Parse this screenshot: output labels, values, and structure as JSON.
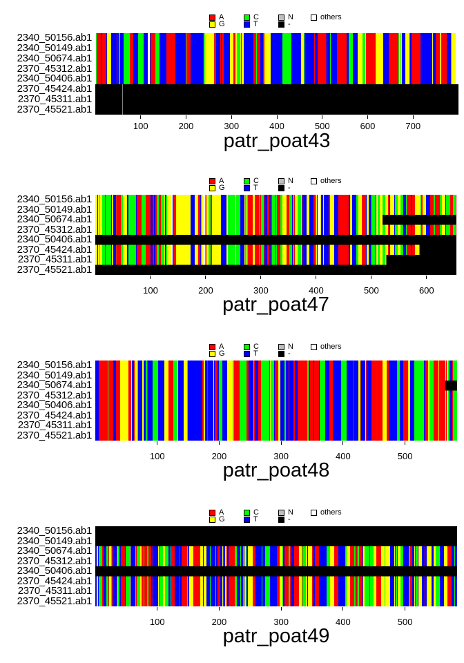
{
  "palette": {
    "A": "#ff0000",
    "C": "#00ff00",
    "N": "#bebebe",
    "others": "#ffffff",
    "G": "#ffff00",
    "T": "#0000ff",
    "-": "#000000"
  },
  "legend_rows": [
    [
      "A",
      "C",
      "N",
      "others"
    ],
    [
      "G",
      "T",
      "-"
    ]
  ],
  "row_labels": [
    "2340_50156.ab1",
    "2340_50149.ab1",
    "2340_50674.ab1",
    "2370_45312.ab1",
    "2340_50406.ab1",
    "2370_45424.ab1",
    "2370_45311.ab1",
    "2370_45521.ab1"
  ],
  "chart_data": [
    {
      "type": "heatmap",
      "subtype": "sequence-alignment",
      "title": "patr_poat43",
      "xlabel": "",
      "ylabel": "",
      "xlim": [
        0,
        800
      ],
      "xticks": [
        100,
        200,
        300,
        400,
        500,
        600,
        700
      ],
      "legend_entries": {
        "A": "#ff0000",
        "C": "#00ff00",
        "N": "#bebebe",
        "others": "#ffffff",
        "G": "#ffff00",
        "T": "#0000ff",
        "-": "#000000"
      },
      "color_mix": {
        "A": 0.3,
        "G": 0.13,
        "C": 0.14,
        "T": 0.31,
        "N": 0.004,
        "others": 0.006
      },
      "rows": [
        {
          "label": "2340_50156.ab1",
          "segments": [
            {
              "start": 0,
              "end": 800,
              "state": "sequence"
            }
          ]
        },
        {
          "label": "2340_50149.ab1",
          "segments": [
            {
              "start": 0,
              "end": 800,
              "state": "sequence"
            }
          ]
        },
        {
          "label": "2340_50674.ab1",
          "segments": [
            {
              "start": 0,
              "end": 800,
              "state": "sequence"
            }
          ]
        },
        {
          "label": "2370_45312.ab1",
          "segments": [
            {
              "start": 0,
              "end": 800,
              "state": "sequence"
            }
          ]
        },
        {
          "label": "2340_50406.ab1",
          "segments": [
            {
              "start": 0,
              "end": 800,
              "state": "sequence"
            }
          ]
        },
        {
          "label": "2370_45424.ab1",
          "segments": [
            {
              "start": 0,
              "end": 59,
              "state": "gap"
            },
            {
              "start": 59,
              "end": 60,
              "state": "blank"
            },
            {
              "start": 60,
              "end": 800,
              "state": "gap"
            }
          ]
        },
        {
          "label": "2370_45311.ab1",
          "segments": [
            {
              "start": 0,
              "end": 59,
              "state": "gap"
            },
            {
              "start": 59,
              "end": 60,
              "state": "blank"
            },
            {
              "start": 60,
              "end": 800,
              "state": "gap"
            }
          ]
        },
        {
          "label": "2370_45521.ab1",
          "segments": [
            {
              "start": 0,
              "end": 59,
              "state": "gap"
            },
            {
              "start": 59,
              "end": 60,
              "state": "blank"
            },
            {
              "start": 60,
              "end": 800,
              "state": "gap"
            }
          ]
        }
      ]
    },
    {
      "type": "heatmap",
      "subtype": "sequence-alignment",
      "title": "patr_poat47",
      "xlabel": "",
      "ylabel": "",
      "xlim": [
        0,
        654
      ],
      "xticks": [
        100,
        200,
        300,
        400,
        500,
        600
      ],
      "legend_entries": {
        "A": "#ff0000",
        "C": "#00ff00",
        "N": "#bebebe",
        "others": "#ffffff",
        "G": "#ffff00",
        "T": "#0000ff",
        "-": "#000000"
      },
      "color_mix": {
        "A": 0.25,
        "G": 0.27,
        "C": 0.25,
        "T": 0.21,
        "N": 0.004,
        "others": 0.01
      },
      "rows": [
        {
          "label": "2340_50156.ab1",
          "segments": [
            {
              "start": 0,
              "end": 654,
              "state": "sequence"
            }
          ]
        },
        {
          "label": "2340_50149.ab1",
          "segments": [
            {
              "start": 0,
              "end": 654,
              "state": "sequence"
            }
          ]
        },
        {
          "label": "2340_50674.ab1",
          "segments": [
            {
              "start": 0,
              "end": 520,
              "state": "sequence"
            },
            {
              "start": 520,
              "end": 654,
              "state": "gap"
            }
          ]
        },
        {
          "label": "2370_45312.ab1",
          "segments": [
            {
              "start": 0,
              "end": 654,
              "state": "sequence"
            }
          ]
        },
        {
          "label": "2340_50406.ab1",
          "segments": [
            {
              "start": 0,
              "end": 654,
              "state": "gap"
            }
          ]
        },
        {
          "label": "2370_45424.ab1",
          "segments": [
            {
              "start": 0,
              "end": 587,
              "state": "sequence"
            },
            {
              "start": 587,
              "end": 654,
              "state": "gap"
            }
          ]
        },
        {
          "label": "2370_45311.ab1",
          "segments": [
            {
              "start": 0,
              "end": 527,
              "state": "sequence"
            },
            {
              "start": 527,
              "end": 654,
              "state": "gap"
            }
          ]
        },
        {
          "label": "2370_45521.ab1",
          "segments": [
            {
              "start": 0,
              "end": 654,
              "state": "gap"
            }
          ]
        }
      ]
    },
    {
      "type": "heatmap",
      "subtype": "sequence-alignment",
      "title": "patr_poat48",
      "xlabel": "",
      "ylabel": "",
      "xlim": [
        0,
        584
      ],
      "xticks": [
        100,
        200,
        300,
        400,
        500
      ],
      "legend_entries": {
        "A": "#ff0000",
        "C": "#00ff00",
        "N": "#bebebe",
        "others": "#ffffff",
        "G": "#ffff00",
        "T": "#0000ff",
        "-": "#000000"
      },
      "color_mix": {
        "A": 0.33,
        "G": 0.13,
        "C": 0.15,
        "T": 0.31,
        "N": 0.003,
        "others": 0.008
      },
      "rows": [
        {
          "label": "2340_50156.ab1",
          "segments": [
            {
              "start": 0,
              "end": 584,
              "state": "sequence"
            }
          ]
        },
        {
          "label": "2340_50149.ab1",
          "segments": [
            {
              "start": 0,
              "end": 584,
              "state": "sequence"
            }
          ]
        },
        {
          "label": "2340_50674.ab1",
          "segments": [
            {
              "start": 0,
              "end": 565,
              "state": "sequence"
            },
            {
              "start": 565,
              "end": 584,
              "state": "gap"
            }
          ]
        },
        {
          "label": "2370_45312.ab1",
          "segments": [
            {
              "start": 0,
              "end": 584,
              "state": "sequence"
            }
          ]
        },
        {
          "label": "2340_50406.ab1",
          "segments": [
            {
              "start": 0,
              "end": 584,
              "state": "sequence"
            }
          ]
        },
        {
          "label": "2370_45424.ab1",
          "segments": [
            {
              "start": 0,
              "end": 584,
              "state": "sequence"
            }
          ]
        },
        {
          "label": "2370_45311.ab1",
          "segments": [
            {
              "start": 0,
              "end": 584,
              "state": "sequence"
            }
          ]
        },
        {
          "label": "2370_45521.ab1",
          "segments": [
            {
              "start": 0,
              "end": 584,
              "state": "sequence"
            }
          ]
        }
      ]
    },
    {
      "type": "heatmap",
      "subtype": "sequence-alignment",
      "title": "patr_poat49",
      "xlabel": "",
      "ylabel": "",
      "xlim": [
        0,
        584
      ],
      "xticks": [
        100,
        200,
        300,
        400,
        500
      ],
      "legend_entries": {
        "A": "#ff0000",
        "C": "#00ff00",
        "N": "#bebebe",
        "others": "#ffffff",
        "G": "#ffff00",
        "T": "#0000ff",
        "-": "#000000"
      },
      "color_mix": {
        "A": 0.27,
        "G": 0.2,
        "C": 0.23,
        "T": 0.28,
        "N": 0.003,
        "others": 0.006
      },
      "rows": [
        {
          "label": "2340_50156.ab1",
          "segments": [
            {
              "start": 0,
              "end": 584,
              "state": "gap"
            }
          ]
        },
        {
          "label": "2340_50149.ab1",
          "segments": [
            {
              "start": 0,
              "end": 584,
              "state": "gap"
            }
          ]
        },
        {
          "label": "2340_50674.ab1",
          "segments": [
            {
              "start": 0,
              "end": 584,
              "state": "sequence"
            }
          ]
        },
        {
          "label": "2370_45312.ab1",
          "segments": [
            {
              "start": 0,
              "end": 584,
              "state": "sequence"
            }
          ]
        },
        {
          "label": "2340_50406.ab1",
          "segments": [
            {
              "start": 0,
              "end": 584,
              "state": "gap"
            }
          ]
        },
        {
          "label": "2370_45424.ab1",
          "segments": [
            {
              "start": 0,
              "end": 584,
              "state": "sequence"
            }
          ]
        },
        {
          "label": "2370_45311.ab1",
          "segments": [
            {
              "start": 0,
              "end": 584,
              "state": "sequence"
            }
          ]
        },
        {
          "label": "2370_45521.ab1",
          "segments": [
            {
              "start": 0,
              "end": 584,
              "state": "sequence"
            }
          ]
        }
      ]
    }
  ]
}
